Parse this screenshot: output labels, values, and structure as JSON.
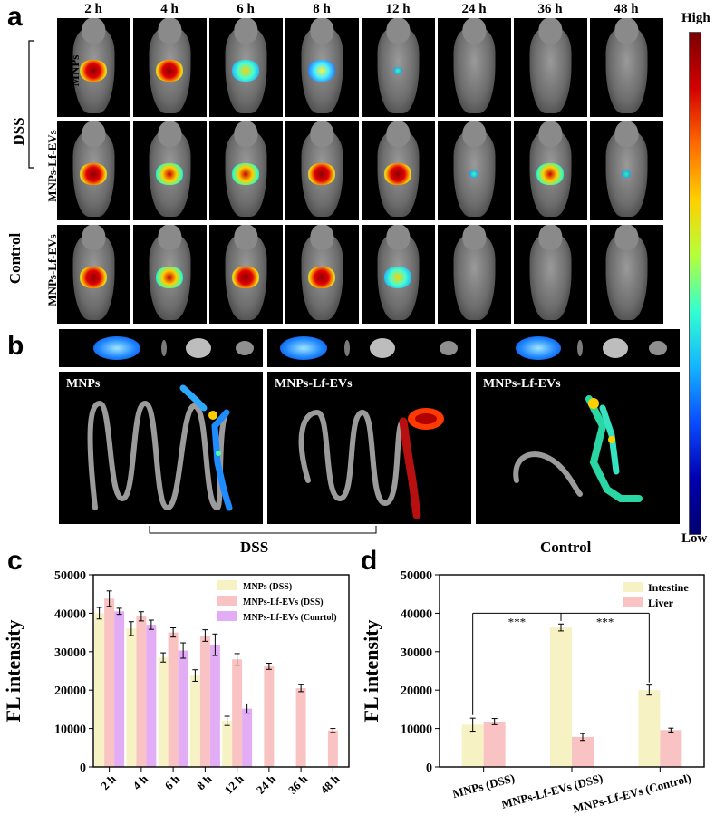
{
  "panel_labels": {
    "a": "a",
    "b": "b",
    "c": "c",
    "d": "d"
  },
  "panel_a": {
    "time_points": [
      "2 h",
      "4 h",
      "6 h",
      "8 h",
      "12 h",
      "24 h",
      "36 h",
      "48 h"
    ],
    "group_label": "DSS",
    "row_labels": [
      "MNPs",
      "MNPs-Lf-EVs",
      "MNPs-Lf-EVs"
    ],
    "side_label_control": "Control",
    "colorbar_high": "High",
    "colorbar_low": "Low"
  },
  "panel_b": {
    "gut_labels": [
      "MNPs",
      "MNPs-Lf-EVs",
      "MNPs-Lf-EVs"
    ],
    "group_dss": "DSS",
    "group_control": "Control"
  },
  "chart_data": [
    {
      "type": "bar",
      "panel": "c",
      "ylabel": "FL intensity",
      "xlabel": "",
      "ylim": [
        0,
        50000
      ],
      "yticks": [
        0,
        10000,
        20000,
        30000,
        40000,
        50000
      ],
      "categories": [
        "2 h",
        "4 h",
        "6 h",
        "8 h",
        "12 h",
        "24 h",
        "36 h",
        "48 h"
      ],
      "legend_position": "top-right",
      "series": [
        {
          "name": "MNPs (DSS)",
          "color": "#f7f2c4",
          "values": [
            40000,
            36000,
            28500,
            23800,
            12000,
            null,
            null,
            null
          ],
          "errors": [
            1500,
            1800,
            1200,
            1500,
            1200,
            null,
            null,
            null
          ]
        },
        {
          "name": "MNPs-Lf-EVs (DSS)",
          "color": "#f9c3c3",
          "values": [
            43800,
            39200,
            35000,
            34200,
            28000,
            26200,
            20500,
            9500
          ],
          "errors": [
            2000,
            1200,
            1200,
            1500,
            1500,
            800,
            900,
            500
          ]
        },
        {
          "name": "MNPs-Lf-EVs (Conrtol)",
          "color": "#e2adf5",
          "values": [
            40500,
            37000,
            30300,
            31800,
            15200,
            null,
            null,
            null
          ],
          "errors": [
            800,
            1200,
            2000,
            2800,
            1200,
            null,
            null,
            null
          ]
        }
      ]
    },
    {
      "type": "bar",
      "panel": "d",
      "ylabel": "FL intensity",
      "xlabel": "",
      "ylim": [
        0,
        50000
      ],
      "yticks": [
        0,
        10000,
        20000,
        30000,
        40000,
        50000
      ],
      "categories": [
        "MNPs (DSS)",
        "MNPs-Lf-EVs (DSS)",
        "MNPs-Lf-EVs (Control)"
      ],
      "legend_position": "top-right",
      "series": [
        {
          "name": "Intestine",
          "color": "#f7f2c4",
          "values": [
            11000,
            36300,
            20000
          ],
          "errors": [
            1700,
            900,
            1300
          ]
        },
        {
          "name": "Liver",
          "color": "#f9c3c3",
          "values": [
            11800,
            7800,
            9600
          ],
          "errors": [
            800,
            900,
            500
          ]
        }
      ],
      "significance": [
        {
          "from": 0,
          "to": 1,
          "label": "***"
        },
        {
          "from": 1,
          "to": 2,
          "label": "***"
        }
      ]
    }
  ],
  "colors": {
    "mnps_dss": "#f7f2c4",
    "lfevs_dss": "#f9c3c3",
    "lfevs_control": "#e2adf5",
    "axis": "#000000"
  }
}
